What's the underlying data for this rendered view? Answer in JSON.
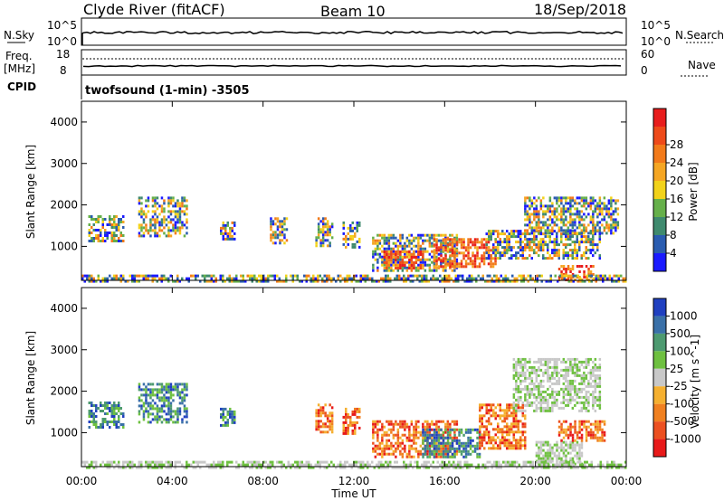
{
  "header": {
    "station": "Clyde River (fitACF)",
    "beam": "Beam 10",
    "date": "18/Sep/2018"
  },
  "status_panels": {
    "nsky_label": "N.Sky",
    "nsky_ticks": [
      "10^5",
      "10^0"
    ],
    "nsearch_label": "N.Search",
    "nsearch_ticks": [
      "10^5",
      "10^0"
    ],
    "freq_label_1": "Freq.",
    "freq_label_2": "[MHz]",
    "freq_ticks": [
      "18",
      "8"
    ],
    "nave_label": "Nave",
    "nave_ticks": [
      "60",
      "0"
    ],
    "cpid_label": "CPID",
    "cpid_text": "twofsound (1-min) -3505"
  },
  "x_axis": {
    "label": "Time UT",
    "ticks": [
      "00:00",
      "04:00",
      "08:00",
      "12:00",
      "16:00",
      "20:00",
      "00:00"
    ]
  },
  "y_axis": {
    "label": "Slant Range [km]",
    "ticks": [
      "1000",
      "2000",
      "3000",
      "4000"
    ]
  },
  "colorbars": {
    "power": {
      "label": "Power [dB]",
      "ticks": [
        "4",
        "8",
        "12",
        "16",
        "20",
        "24",
        "28"
      ],
      "colors": [
        "#1a1aff",
        "#2a5cb0",
        "#3f8a6e",
        "#66b04a",
        "#f2d21a",
        "#f5a623",
        "#f27a1a",
        "#ee4a1a",
        "#e81d1d"
      ]
    },
    "velocity": {
      "label": "Velocity [m s^-1]",
      "ticks": [
        "1000",
        "500",
        "100",
        "25",
        "-25",
        "-100",
        "-500",
        "-1000"
      ],
      "colors": [
        "#2040c0",
        "#3a70a8",
        "#4d9a70",
        "#6ec040",
        "#c8c8c8",
        "#f5b030",
        "#f08020",
        "#ec5020",
        "#e81a1a"
      ]
    }
  },
  "chart_data": [
    {
      "type": "heatmap",
      "title": "Power",
      "xlabel": "Time UT",
      "ylabel": "Slant Range [km]",
      "xlim": [
        0,
        24
      ],
      "ylim": [
        180,
        4500
      ],
      "colorbar_label": "Power [dB]",
      "colorbar_ticks": [
        4,
        8,
        12,
        16,
        20,
        24,
        28
      ],
      "patches": [
        {
          "t0": 0.3,
          "t1": 1.8,
          "r0": 1150,
          "r1": 1750,
          "level": "mixed"
        },
        {
          "t0": 2.5,
          "t1": 4.6,
          "r0": 1250,
          "r1": 2200,
          "level": "mixed"
        },
        {
          "t0": 6.1,
          "t1": 6.7,
          "r0": 1200,
          "r1": 1600,
          "level": "mixed"
        },
        {
          "t0": 8.3,
          "t1": 9.0,
          "r0": 1100,
          "r1": 1700,
          "level": "mixed"
        },
        {
          "t0": 10.3,
          "t1": 11.0,
          "r0": 1000,
          "r1": 1700,
          "level": "mixed"
        },
        {
          "t0": 11.5,
          "t1": 12.2,
          "r0": 1000,
          "r1": 1600,
          "level": "mixed"
        },
        {
          "t0": 12.8,
          "t1": 16.5,
          "r0": 400,
          "r1": 1300,
          "level": "mixed"
        },
        {
          "t0": 13.3,
          "t1": 15.0,
          "r0": 500,
          "r1": 900,
          "level": "high"
        },
        {
          "t0": 15.5,
          "t1": 18.2,
          "r0": 500,
          "r1": 1200,
          "level": "high"
        },
        {
          "t0": 17.8,
          "t1": 22.8,
          "r0": 700,
          "r1": 1400,
          "level": "mixed"
        },
        {
          "t0": 19.5,
          "t1": 23.6,
          "r0": 1300,
          "r1": 2200,
          "level": "mixed"
        },
        {
          "t0": 21.0,
          "t1": 22.5,
          "r0": 180,
          "r1": 550,
          "level": "high"
        },
        {
          "t0": 0.0,
          "t1": 24.0,
          "r0": 180,
          "r1": 320,
          "level": "mixed"
        }
      ]
    },
    {
      "type": "heatmap",
      "title": "Velocity",
      "xlabel": "Time UT",
      "ylabel": "Slant Range [km]",
      "xlim": [
        0,
        24
      ],
      "ylim": [
        180,
        4500
      ],
      "colorbar_label": "Velocity [m s^-1]",
      "colorbar_ticks": [
        1000,
        500,
        100,
        25,
        -25,
        -100,
        -500,
        -1000
      ],
      "patches": [
        {
          "t0": 0.3,
          "t1": 1.8,
          "r0": 1150,
          "r1": 1750,
          "level": "positive"
        },
        {
          "t0": 2.5,
          "t1": 4.6,
          "r0": 1250,
          "r1": 2200,
          "level": "positive"
        },
        {
          "t0": 6.1,
          "t1": 6.7,
          "r0": 1200,
          "r1": 1600,
          "level": "positive"
        },
        {
          "t0": 10.3,
          "t1": 11.0,
          "r0": 1000,
          "r1": 1700,
          "level": "negative"
        },
        {
          "t0": 11.5,
          "t1": 12.2,
          "r0": 1000,
          "r1": 1600,
          "level": "negative"
        },
        {
          "t0": 12.8,
          "t1": 16.5,
          "r0": 400,
          "r1": 1300,
          "level": "negative"
        },
        {
          "t0": 15.0,
          "t1": 17.5,
          "r0": 400,
          "r1": 1100,
          "level": "positive"
        },
        {
          "t0": 17.5,
          "t1": 19.5,
          "r0": 600,
          "r1": 1700,
          "level": "negative"
        },
        {
          "t0": 19.0,
          "t1": 22.8,
          "r0": 1500,
          "r1": 2800,
          "level": "near-zero"
        },
        {
          "t0": 20.0,
          "t1": 22.0,
          "r0": 200,
          "r1": 800,
          "level": "near-zero"
        },
        {
          "t0": 21.0,
          "t1": 23.0,
          "r0": 800,
          "r1": 1300,
          "level": "negative"
        },
        {
          "t0": 0.0,
          "t1": 24.0,
          "r0": 180,
          "r1": 320,
          "level": "near-zero"
        }
      ]
    }
  ]
}
